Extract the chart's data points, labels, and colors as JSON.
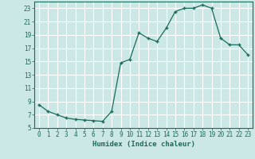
{
  "x": [
    0,
    1,
    2,
    3,
    4,
    5,
    6,
    7,
    8,
    9,
    10,
    11,
    12,
    13,
    14,
    15,
    16,
    17,
    18,
    19,
    20,
    21,
    22,
    23
  ],
  "y": [
    8.5,
    7.5,
    7.0,
    6.5,
    6.3,
    6.2,
    6.1,
    6.0,
    7.5,
    14.8,
    15.3,
    19.3,
    18.5,
    18.0,
    20.0,
    22.5,
    23.0,
    23.0,
    23.5,
    23.0,
    18.5,
    17.5,
    17.5,
    16.0
  ],
  "xlabel": "Humidex (Indice chaleur)",
  "xlim": [
    -0.5,
    23.5
  ],
  "ylim": [
    5,
    24
  ],
  "yticks": [
    5,
    7,
    9,
    11,
    13,
    15,
    17,
    19,
    21,
    23
  ],
  "xticks": [
    0,
    1,
    2,
    3,
    4,
    5,
    6,
    7,
    8,
    9,
    10,
    11,
    12,
    13,
    14,
    15,
    16,
    17,
    18,
    19,
    20,
    21,
    22,
    23
  ],
  "line_color": "#1a6b5a",
  "marker_color": "#1a6b5a",
  "bg_color": "#cce8e6",
  "grid_color": "#ffffff",
  "axes_color": "#1a6b5a",
  "tick_label_fontsize": 5.5,
  "xlabel_fontsize": 6.5
}
